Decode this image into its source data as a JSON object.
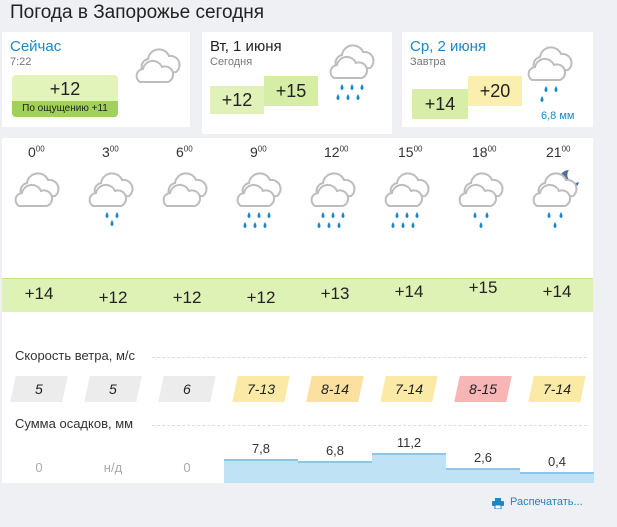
{
  "title": "Погода в Запорожье сегодня",
  "now": {
    "label": "Сейчас",
    "time": "7:22",
    "temp": "+12",
    "feels": "По ощущению +11",
    "icon": "cloud-icon"
  },
  "today": {
    "label": "Вт, 1 июня",
    "sub": "Сегодня",
    "low": "+12",
    "high": "+15",
    "icon": "cloud-rain-icon"
  },
  "tomorrow": {
    "label": "Ср, 2 июня",
    "sub": "Завтра",
    "low": "+14",
    "high": "+20",
    "precip": "6,8 мм",
    "icon": "cloud-rain-icon"
  },
  "hours": [
    {
      "hour": "0",
      "icon": "cloud",
      "temp": "+14",
      "wind": "5",
      "wind_color": "#ececec",
      "precip": "0"
    },
    {
      "hour": "3",
      "icon": "cloud-light-rain",
      "temp": "+12",
      "wind": "5",
      "wind_color": "#ececec",
      "precip": "н/д"
    },
    {
      "hour": "6",
      "icon": "cloud",
      "temp": "+12",
      "wind": "6",
      "wind_color": "#ececec",
      "precip": "0"
    },
    {
      "hour": "9",
      "icon": "cloud-heavy-rain",
      "temp": "+12",
      "wind": "7-13",
      "wind_color": "#fbe9a6",
      "precip": "7,8"
    },
    {
      "hour": "12",
      "icon": "cloud-heavy-rain",
      "temp": "+13",
      "wind": "8-14",
      "wind_color": "#fbe0a0",
      "precip": "6,8"
    },
    {
      "hour": "15",
      "icon": "cloud-heavy-rain",
      "temp": "+14",
      "wind": "7-14",
      "wind_color": "#fbe9a6",
      "precip": "11,2"
    },
    {
      "hour": "18",
      "icon": "cloud-rain",
      "temp": "+15",
      "wind": "8-15",
      "wind_color": "#f7b5b5",
      "precip": "2,6"
    },
    {
      "hour": "21",
      "icon": "moon-cloud-rain",
      "temp": "+14",
      "wind": "7-14",
      "wind_color": "#fbe9a6",
      "precip": "0,4"
    }
  ],
  "hour_minutes": "00",
  "wind_label": "Скорость ветра, м/с",
  "precip_label": "Сумма осадков, мм",
  "print_label": "Распечатать...",
  "colors": {
    "accent": "#1b87c9",
    "temp_strip": "#dff2b6",
    "rain": "#1b87c9"
  }
}
